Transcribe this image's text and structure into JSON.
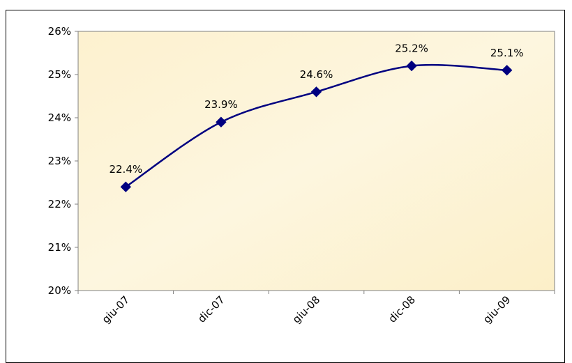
{
  "chart_data": {
    "type": "line",
    "categories": [
      "giu-07",
      "dic-07",
      "giu-08",
      "dic-08",
      "giu-09"
    ],
    "series": [
      {
        "values": [
          22.4,
          23.9,
          24.6,
          25.2,
          25.1
        ]
      }
    ],
    "data_labels": [
      "22.4%",
      "23.9%",
      "24.6%",
      "25.2%",
      "25.1%"
    ],
    "y_ticks": [
      "20%",
      "21%",
      "22%",
      "23%",
      "24%",
      "25%",
      "26%"
    ],
    "ylim": [
      20,
      26
    ],
    "colors": {
      "line": "#000080",
      "plot_bg": "#fdf3d2",
      "axis": "#808080"
    },
    "grid": false,
    "marker": "diamond"
  }
}
